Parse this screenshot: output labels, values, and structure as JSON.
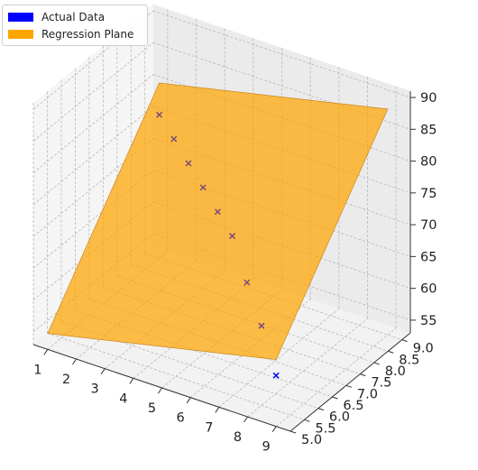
{
  "chart_data": {
    "type": "scatter",
    "subtype": "3d-scatter-with-regression-plane",
    "xlabel": "",
    "ylabel": "",
    "zlabel": "",
    "xlim": [
      0.5,
      9.5
    ],
    "ylim": [
      5.0,
      9.3
    ],
    "zlim": [
      53,
      91
    ],
    "x_ticks": [
      "1",
      "2",
      "3",
      "4",
      "5",
      "6",
      "7",
      "8",
      "9"
    ],
    "y_ticks": [
      "5.0",
      "5.5",
      "6.0",
      "6.5",
      "7.0",
      "7.5",
      "8.0",
      "8.5",
      "9.0"
    ],
    "z_ticks": [
      "55",
      "60",
      "65",
      "70",
      "75",
      "80",
      "85",
      "90"
    ],
    "grid": true,
    "legend_position": "top-left",
    "colors": {
      "actual": "#0000ff",
      "plane": "#ffa500"
    },
    "legend": [
      {
        "label": "Actual Data",
        "color": "#0000ff"
      },
      {
        "label": "Regression Plane",
        "color": "#ffa500"
      }
    ],
    "series": [
      {
        "name": "Actual Data",
        "marker": "x",
        "points": [
          {
            "x": 1,
            "y": 9.0,
            "z": 75.5
          },
          {
            "x": 2,
            "y": 8.5,
            "z": 75.0
          },
          {
            "x": 3,
            "y": 8.0,
            "z": 74.5
          },
          {
            "x": 4,
            "y": 7.5,
            "z": 74.0
          },
          {
            "x": 5,
            "y": 7.0,
            "z": 73.5
          },
          {
            "x": 6,
            "y": 6.5,
            "z": 73.0
          },
          {
            "x": 7,
            "y": 6.0,
            "z": 69.0
          },
          {
            "x": 8,
            "y": 5.5,
            "z": 65.5
          },
          {
            "x": 9,
            "y": 5.0,
            "z": 61.0
          }
        ]
      },
      {
        "name": "Regression Plane",
        "surface": {
          "x_range": [
            1,
            9
          ],
          "y_range": [
            5.0,
            9.0
          ],
          "z_at_corners": [
            {
              "x": 1,
              "y": 5.0,
              "z": 55.5
            },
            {
              "x": 9,
              "y": 5.0,
              "z": 63.5
            },
            {
              "x": 9,
              "y": 9.0,
              "z": 88.5
            },
            {
              "x": 1,
              "y": 9.0,
              "z": 80.5
            }
          ]
        }
      }
    ]
  }
}
